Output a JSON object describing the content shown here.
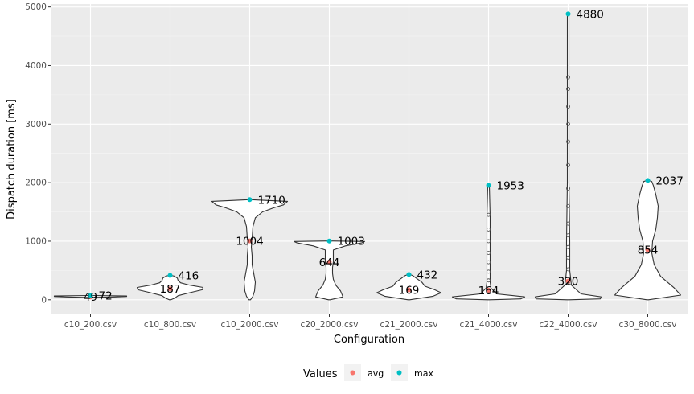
{
  "chart_data": {
    "type": "violin",
    "xlabel": "Configuration",
    "ylabel": "Dispatch duration [ms]",
    "ylim": [
      -250,
      5050
    ],
    "y_ticks": [
      0,
      1000,
      2000,
      3000,
      4000,
      5000
    ],
    "grid": true,
    "legend": {
      "title": "Values",
      "position": "bottom",
      "entries": [
        {
          "name": "avg",
          "color": "#F8766D"
        },
        {
          "name": "max",
          "color": "#00BFC4"
        }
      ]
    },
    "categories": [
      "c10_200.csv",
      "c10_800.csv",
      "c10_2000.csv",
      "c20_2000.csv",
      "c21_2000.csv",
      "c21_4000.csv",
      "c22_4000.csv",
      "c30_8000.csv"
    ],
    "series": [
      {
        "name": "avg",
        "values": [
          49,
          187,
          1004,
          644,
          169,
          164,
          320,
          854
        ],
        "labels": [
          "49",
          "187",
          "1004",
          "644",
          "169",
          "164",
          "320",
          "854"
        ]
      },
      {
        "name": "max",
        "values": [
          72,
          416,
          1710,
          1003,
          432,
          1953,
          4880,
          2037
        ],
        "labels": [
          "72",
          "416",
          "1710",
          "1003",
          "432",
          "1953",
          "4880",
          "2037"
        ]
      }
    ]
  }
}
